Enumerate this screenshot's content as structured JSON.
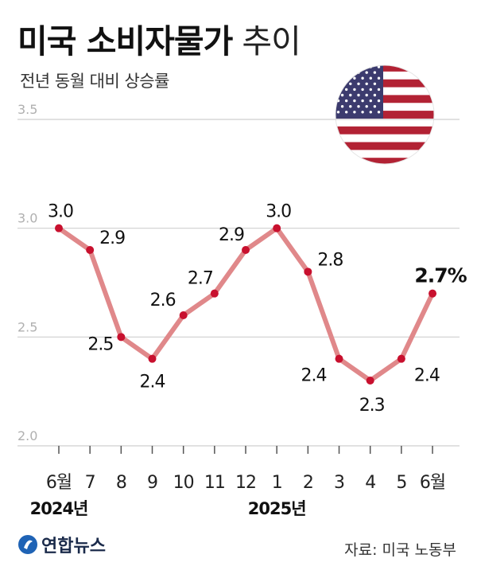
{
  "header": {
    "title_bold": "미국 소비자물가",
    "title_light": " 추이",
    "subtitle": "전년 동월 대비 상승률"
  },
  "footer": {
    "logo_text": "연합뉴스",
    "source": "자료: 미국 노동부"
  },
  "chart_data": {
    "type": "line",
    "categories": [
      "6월",
      "7",
      "8",
      "9",
      "10",
      "11",
      "12",
      "1",
      "2",
      "3",
      "4",
      "5",
      "6월"
    ],
    "year_labels": [
      {
        "label": "2024년",
        "index": 0
      },
      {
        "label": "2025년",
        "index": 7
      }
    ],
    "values": [
      3.0,
      2.9,
      2.5,
      2.4,
      2.6,
      2.7,
      2.9,
      3.0,
      2.8,
      2.4,
      2.3,
      2.4,
      2.7
    ],
    "value_labels": [
      "3.0",
      "2.9",
      "2.5",
      "2.4",
      "2.6",
      "2.7",
      "2.9",
      "3.0",
      "2.8",
      "2.4",
      "2.3",
      "2.4",
      "2.7%"
    ],
    "yticks": [
      3.5,
      3.0,
      2.5,
      2.0
    ],
    "ytick_labels": [
      "3.5",
      "3.0",
      "2.5",
      "2.0"
    ],
    "ylim": [
      2.0,
      3.5
    ],
    "grid": true,
    "line_color": "#e0888a",
    "point_color": "#c8102e",
    "flag_icon": "us-flag-icon"
  }
}
